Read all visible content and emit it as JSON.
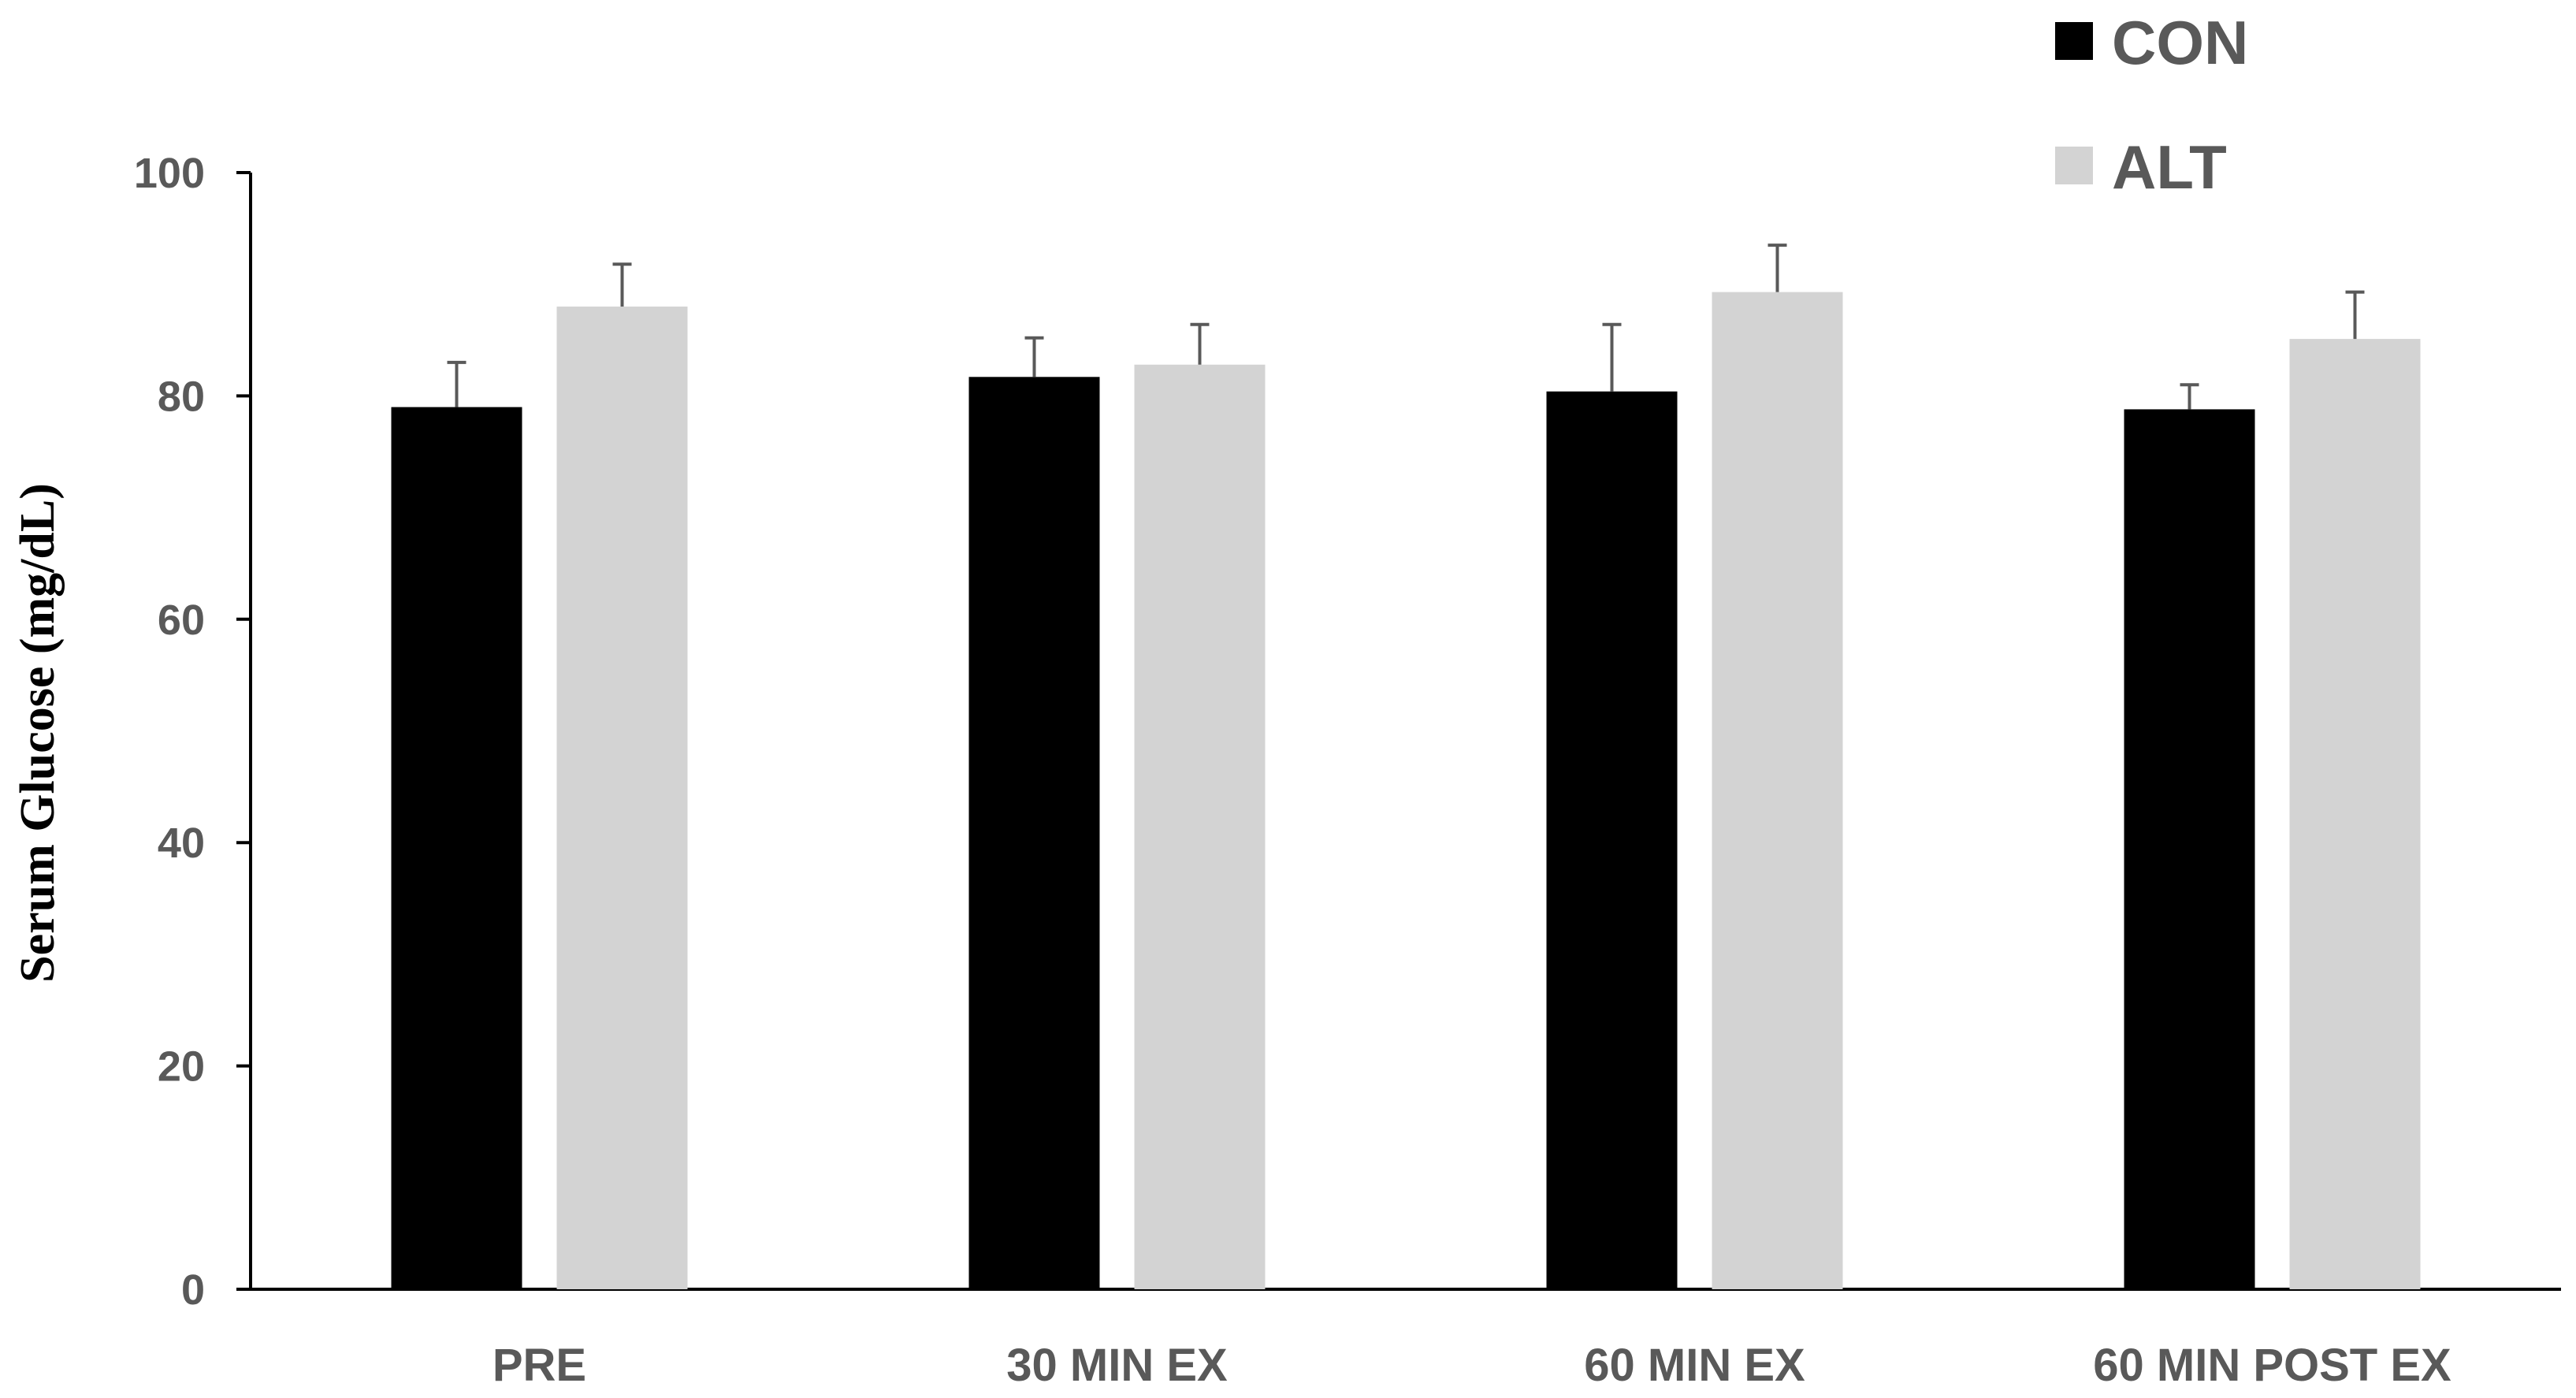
{
  "chart_data": {
    "type": "bar",
    "categories": [
      "PRE",
      "30 MIN EX",
      "60 MIN EX",
      "60 MIN POST EX"
    ],
    "series": [
      {
        "name": "CON",
        "color": "#000000",
        "values": [
          79,
          81.7,
          80.4,
          78.8
        ],
        "errors": [
          4.0,
          3.5,
          6.0,
          2.2
        ]
      },
      {
        "name": "ALT",
        "color": "#d3d3d3",
        "values": [
          88,
          82.8,
          89.3,
          85.1
        ],
        "errors": [
          3.8,
          3.6,
          4.2,
          4.2
        ]
      }
    ],
    "title": "",
    "xlabel": "",
    "ylabel": "Serum Glucose  (mg/dL)",
    "ylim": [
      0,
      100
    ],
    "yticks": [
      0,
      20,
      40,
      60,
      80,
      100
    ],
    "ytick_labels": [
      "0",
      "20",
      "40",
      "60",
      "80",
      "100"
    ],
    "error_bars": "upper",
    "grid": false,
    "legend_position": "top-right",
    "axis_color": "#000000",
    "error_bar_color": "#595959",
    "label_color": "#595959"
  }
}
